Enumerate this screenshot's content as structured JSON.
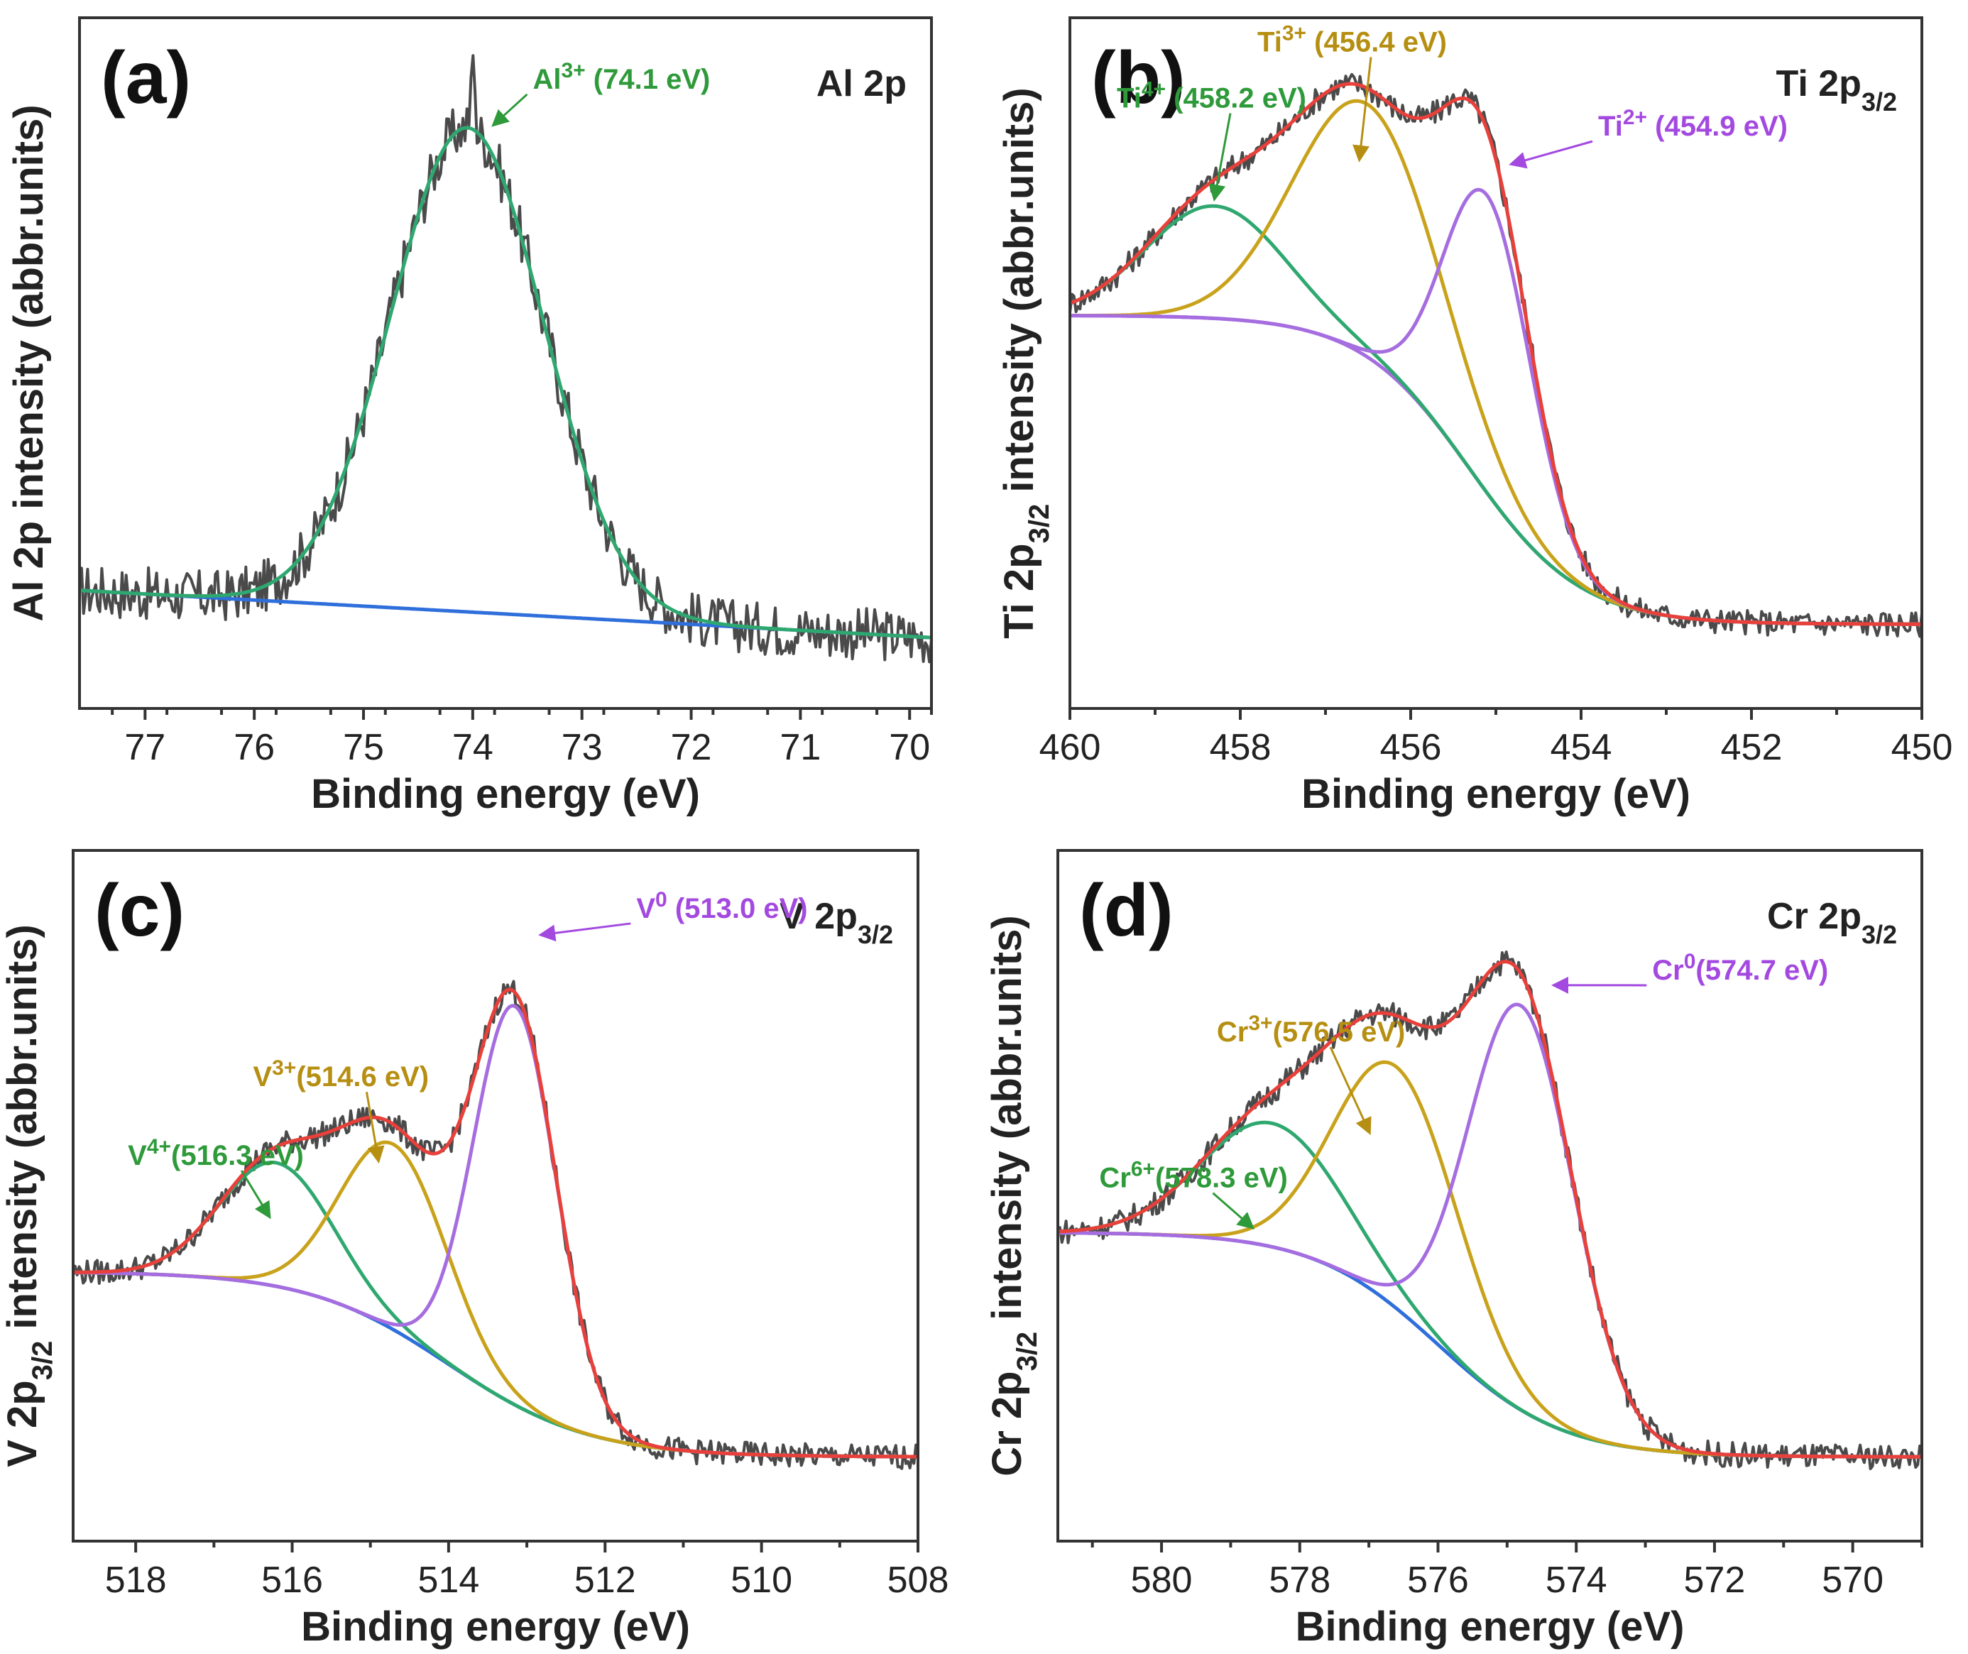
{
  "chart_data": [
    {
      "id": "a",
      "type": "line",
      "letter": "(a)",
      "title": "Al 2p",
      "ylabel": "Al 2p intensity (abbr.units)",
      "xlabel": "Binding energy (eV)",
      "xlim": [
        77.6,
        69.8
      ],
      "xticks": [
        77,
        76,
        75,
        74,
        73,
        72,
        71,
        70
      ],
      "ylim": [
        -0.12,
        1.05
      ],
      "background": {
        "color": "#2f6fdb",
        "left": 0.08,
        "right": 0.0
      },
      "peaks": [
        {
          "name": "Al3+",
          "ion": "Al",
          "charge": "3+",
          "energy_text": "(74.1 eV)",
          "center": 74.05,
          "height": 0.82,
          "fwhm": 1.65,
          "color": "#2fa870"
        }
      ],
      "envelope_color": null,
      "noise": 0.045,
      "spike": {
        "x": 74.0,
        "height": 0.1
      },
      "annotations": [
        {
          "label": "Al",
          "sup": "3+",
          "value": " (74.1 eV)",
          "color": "#2e9a3a",
          "tx": 73.45,
          "ty": 0.93,
          "ax": 73.8,
          "ay": 0.87
        }
      ]
    },
    {
      "id": "b",
      "type": "line",
      "letter": "(b)",
      "title": "Ti 2p",
      "title_sub": "3/2",
      "ylabel": "Ti 2p",
      "ylabel_sub": "3/2",
      "ylabel_rest": " intensity (abbr.units)",
      "xlabel": "Binding energy (eV)",
      "xlim": [
        460,
        450
      ],
      "xticks": [
        460,
        458,
        456,
        454,
        452,
        450
      ],
      "ylim": [
        -0.15,
        1.08
      ],
      "background": {
        "color": "#a56de0",
        "left": 0.55,
        "right": 0.0,
        "step_center": 455.3,
        "step_width": 0.65
      },
      "peaks": [
        {
          "name": "Ti4+",
          "ion": "Ti",
          "charge": "4+",
          "energy_text": "(458.2 eV)",
          "center": 458.3,
          "height": 0.2,
          "fwhm": 1.9,
          "color": "#2fa870"
        },
        {
          "name": "Ti3+",
          "ion": "Ti",
          "charge": "3+",
          "energy_text": "(456.4 eV)",
          "center": 456.5,
          "height": 0.45,
          "fwhm": 2.0,
          "color": "#c9a21c"
        },
        {
          "name": "Ti2+",
          "ion": "Ti",
          "charge": "2+",
          "energy_text": "(454.9 eV)",
          "center": 455.1,
          "height": 0.53,
          "fwhm": 1.2,
          "color": "#a56de0"
        }
      ],
      "envelope_color": "#e8403a",
      "noise": 0.022,
      "annotations": [
        {
          "label": "Ti",
          "sup": "4+",
          "value": " (458.2 eV)",
          "color": "#2e9a3a",
          "tx": 459.45,
          "ty": 0.92,
          "ax": 458.3,
          "ay": 0.76
        },
        {
          "label": "Ti",
          "sup": "3+",
          "value": " (456.4 eV)",
          "color": "#b68f12",
          "tx": 457.8,
          "ty": 1.02,
          "ax": 456.6,
          "ay": 0.83
        },
        {
          "label": "Ti",
          "sup": "2+",
          "value": " (454.9 eV)",
          "color": "#a349e0",
          "tx": 453.8,
          "ty": 0.87,
          "ax": 454.8,
          "ay": 0.82
        }
      ]
    },
    {
      "id": "c",
      "type": "line",
      "letter": "(c)",
      "title": "V 2p",
      "title_sub": "3/2",
      "ylabel": "V 2p",
      "ylabel_sub": "3/2",
      "ylabel_rest": " intensity (abbr.units)",
      "xlabel": "Binding energy (eV)",
      "xlim": [
        518.8,
        508
      ],
      "xticks": [
        518,
        516,
        514,
        512,
        510,
        508
      ],
      "ylim": [
        -0.15,
        1.08
      ],
      "background": {
        "color": "#2f6fdb",
        "left": 0.33,
        "right": 0.0,
        "step_center": 514.0,
        "step_width": 0.9
      },
      "peaks": [
        {
          "name": "V4+",
          "ion": "V",
          "charge": "4+",
          "energy_text": "(516.3 eV)",
          "center": 516.2,
          "height": 0.22,
          "fwhm": 1.7,
          "color": "#2fa870"
        },
        {
          "name": "V3+",
          "ion": "V",
          "charge": "3+",
          "energy_text": "(514.6 eV)",
          "center": 514.7,
          "height": 0.33,
          "fwhm": 1.6,
          "color": "#c9a21c"
        },
        {
          "name": "V0",
          "ion": "V",
          "charge": "0",
          "energy_text": "(513.0 eV)",
          "center": 513.15,
          "height": 0.71,
          "fwhm": 1.25,
          "color": "#a56de0"
        }
      ],
      "envelope_color": "#e8403a",
      "noise": 0.022,
      "annotations": [
        {
          "label": "V",
          "sup": "0",
          "value": " (513.0 eV)",
          "color": "#a349e0",
          "tx": 511.6,
          "ty": 0.96,
          "ax": 512.8,
          "ay": 0.93
        },
        {
          "label": "V",
          "sup": "3+",
          "value": "(514.6 eV)",
          "color": "#b68f12",
          "tx": 516.5,
          "ty": 0.66,
          "ax": 514.9,
          "ay": 0.53
        },
        {
          "label": "V",
          "sup": "4+",
          "value": "(516.3 eV)",
          "color": "#2e9a3a",
          "tx": 518.1,
          "ty": 0.52,
          "ax": 516.3,
          "ay": 0.43
        }
      ]
    },
    {
      "id": "d",
      "type": "line",
      "letter": "(d)",
      "title": "Cr 2p",
      "title_sub": "3/2",
      "ylabel": "Cr 2p",
      "ylabel_sub": "3/2",
      "ylabel_rest": " intensity (abbr.units)",
      "xlabel": "Binding energy (eV)",
      "xlim": [
        581.5,
        569
      ],
      "xticks": [
        580,
        578,
        576,
        574,
        572,
        570
      ],
      "ylim": [
        -0.15,
        1.08
      ],
      "background": {
        "color": "#2f6fdb",
        "left": 0.4,
        "right": 0.0,
        "step_center": 576.0,
        "step_width": 0.9
      },
      "peaks": [
        {
          "name": "Cr6+",
          "ion": "Cr",
          "charge": "6+",
          "energy_text": "(578.3 eV)",
          "center": 578.4,
          "height": 0.22,
          "fwhm": 2.4,
          "color": "#2fa870"
        },
        {
          "name": "Cr3+",
          "ion": "Cr",
          "charge": "3+",
          "energy_text": "(576.5 eV)",
          "center": 576.6,
          "height": 0.43,
          "fwhm": 2.1,
          "color": "#c9a21c"
        },
        {
          "name": "Cr0",
          "ion": "Cr",
          "charge": "0",
          "energy_text": "(574.7 eV)",
          "center": 574.8,
          "height": 0.72,
          "fwhm": 1.8,
          "color": "#a56de0"
        }
      ],
      "envelope_color": "#e8403a",
      "noise": 0.022,
      "annotations": [
        {
          "label": "Cr",
          "sup": "0",
          "value": "(574.7 eV)",
          "color": "#a349e0",
          "tx": 572.9,
          "ty": 0.85,
          "ax": 574.3,
          "ay": 0.84
        },
        {
          "label": "Cr",
          "sup": "3+",
          "value": "(576.5 eV)",
          "color": "#b68f12",
          "tx": 579.2,
          "ty": 0.74,
          "ax": 577.0,
          "ay": 0.58
        },
        {
          "label": "Cr",
          "sup": "6+",
          "value": "(578.3 eV)",
          "color": "#2e9a3a",
          "tx": 580.9,
          "ty": 0.48,
          "ax": 578.7,
          "ay": 0.41
        }
      ]
    }
  ]
}
